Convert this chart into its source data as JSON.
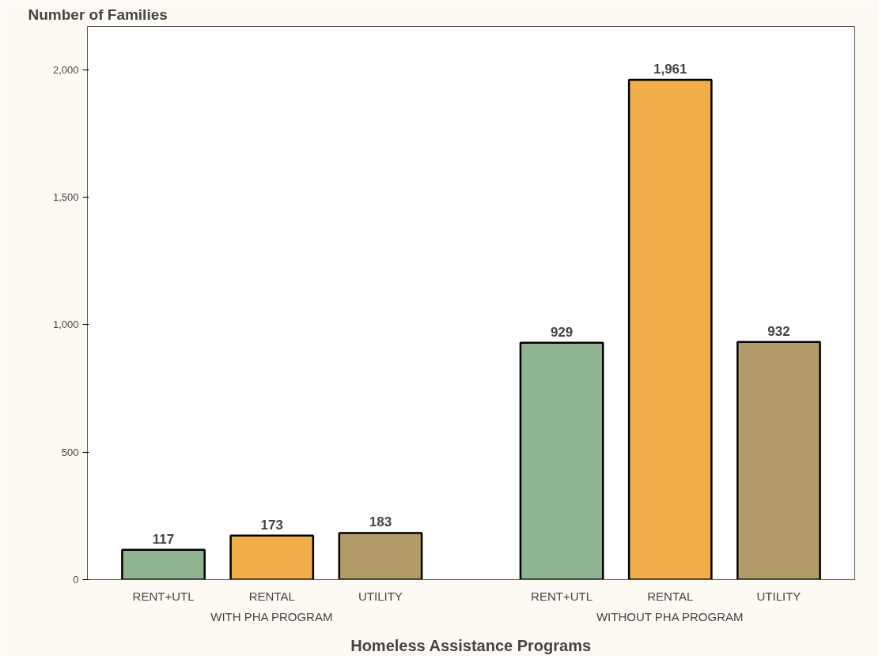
{
  "chart_data": {
    "type": "bar",
    "ylabel": "Number of Families",
    "xlabel": "Homeless Assistance Programs",
    "categories": [
      "WITH PHA PROGRAM",
      "WITHOUT PHA PROGRAM"
    ],
    "series": [
      {
        "name": "RENT+UTL",
        "color": "#8fb48f",
        "values": [
          117,
          929
        ],
        "value_labels": [
          "117",
          "929"
        ]
      },
      {
        "name": "RENTAL",
        "color": "#f2ae4a",
        "values": [
          173,
          1961
        ],
        "value_labels": [
          "173",
          "1,961"
        ]
      },
      {
        "name": "UTILITY",
        "color": "#b39b69",
        "values": [
          183,
          932
        ],
        "value_labels": [
          "183",
          "932"
        ]
      }
    ],
    "ylim": [
      0,
      2170
    ],
    "yticks": [
      {
        "value": 0,
        "label": "0"
      },
      {
        "value": 500,
        "label": "500"
      },
      {
        "value": 1000,
        "label": "1,000"
      },
      {
        "value": 1500,
        "label": "1,500"
      },
      {
        "value": 2000,
        "label": "2,000"
      }
    ],
    "grid": false
  }
}
